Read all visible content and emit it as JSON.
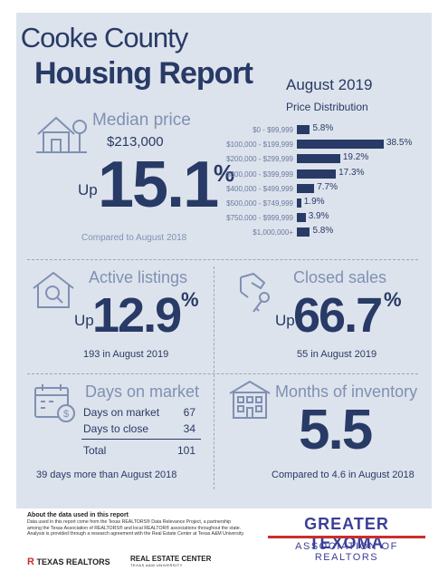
{
  "header": {
    "title_line1": "Cooke County",
    "title_line2": "Housing Report",
    "month": "August 2019",
    "distribution_title": "Price Distribution"
  },
  "median_price": {
    "label": "Median price",
    "value": "$213,000",
    "direction": "Up",
    "change": "15.1",
    "percent_sign": "%",
    "comparison": "Compared to August 2018",
    "icon": "house-tree-icon"
  },
  "chart_data": {
    "type": "bar",
    "orientation": "horizontal",
    "title": "Price Distribution",
    "categories": [
      "$0 - $99,999",
      "$100,000 - $199,999",
      "$200,000 - $299,999",
      "$300,000 - $399,999",
      "$400,000 - $499,999",
      "$500,000 - $749,999",
      "$750,000 - $999,999",
      "$1,000,000+"
    ],
    "values": [
      5.8,
      38.5,
      19.2,
      17.3,
      7.7,
      1.9,
      3.9,
      5.8
    ],
    "value_labels": [
      "5.8%",
      "38.5%",
      "19.2%",
      "17.3%",
      "7.7%",
      "1.9%",
      "3.9%",
      "5.8%"
    ],
    "bar_color": "#283a66"
  },
  "active_listings": {
    "label": "Active listings",
    "direction": "Up",
    "change": "12.9",
    "percent_sign": "%",
    "detail": "193 in August 2019",
    "icon": "house-magnifier-icon"
  },
  "closed_sales": {
    "label": "Closed sales",
    "direction": "Up",
    "change": "66.7",
    "percent_sign": "%",
    "detail": "55 in August 2019",
    "icon": "hand-key-icon"
  },
  "days_on_market": {
    "label": "Days on market",
    "rows": [
      {
        "label": "Days on market",
        "value": "67"
      },
      {
        "label": "Days to close",
        "value": "34"
      }
    ],
    "total_label": "Total",
    "total_value": "101",
    "detail": "39 days more than August 2018",
    "icon": "calendar-dollar-icon"
  },
  "months_inventory": {
    "label": "Months of inventory",
    "value": "5.5",
    "detail": "Compared to 4.6 in August 2018",
    "icon": "building-icon"
  },
  "footer": {
    "about_heading": "About the data used in this report",
    "about_text": "Data used in this report come from the Texas REALTORS® Data Relevance Project, a partnership among the Texas Association of REALTORS® and local REALTOR® associations throughout the state. Analysis is provided through a research agreement with the Real Estate Center at Texas A&M University.",
    "logo_texas_realtors": "TEXAS REALTORS",
    "logo_rec": "REAL ESTATE CENTER",
    "logo_rec_sub": "TEXAS A&M UNIVERSITY",
    "association_line1": "GREATER TEXOMA",
    "association_line2": "ASSOCIATION OF REALTORS"
  },
  "colors": {
    "navy": "#283a66",
    "light_blue": "#7f90b4",
    "panel": "#dde3ec",
    "accent_red": "#c8302f",
    "association_blue": "#3b3f98"
  }
}
